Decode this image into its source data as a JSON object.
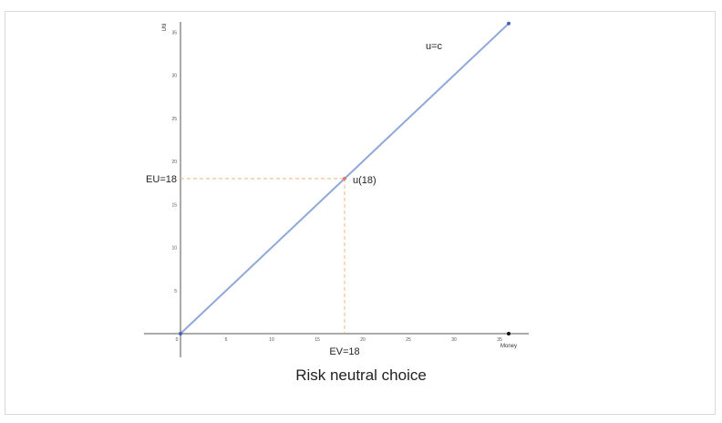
{
  "caption": "Risk neutral choice",
  "colors": {
    "line": "#8fa8d8",
    "guide": "#f4b07a",
    "axis": "#555555",
    "point": "#e07a7a",
    "endpoint": "#4a5fc0"
  },
  "chart_data": {
    "type": "line",
    "xlabel": "Money",
    "ylabel": "Util",
    "xlim": [
      0,
      36
    ],
    "ylim": [
      0,
      36
    ],
    "x_ticks": [
      "0",
      "5",
      "10",
      "15",
      "20",
      "25",
      "30",
      "35"
    ],
    "y_ticks": [
      "5",
      "10",
      "15",
      "20",
      "25",
      "30",
      "35"
    ],
    "series": [
      {
        "name": "u=c",
        "x": [
          0,
          36
        ],
        "y": [
          0,
          36
        ]
      }
    ],
    "point": {
      "x": 18,
      "y": 18,
      "label": "u(18)"
    },
    "annotations": {
      "ev": "EV=18",
      "eu": "EU=18",
      "line_label": "u=c"
    },
    "grid": false
  }
}
